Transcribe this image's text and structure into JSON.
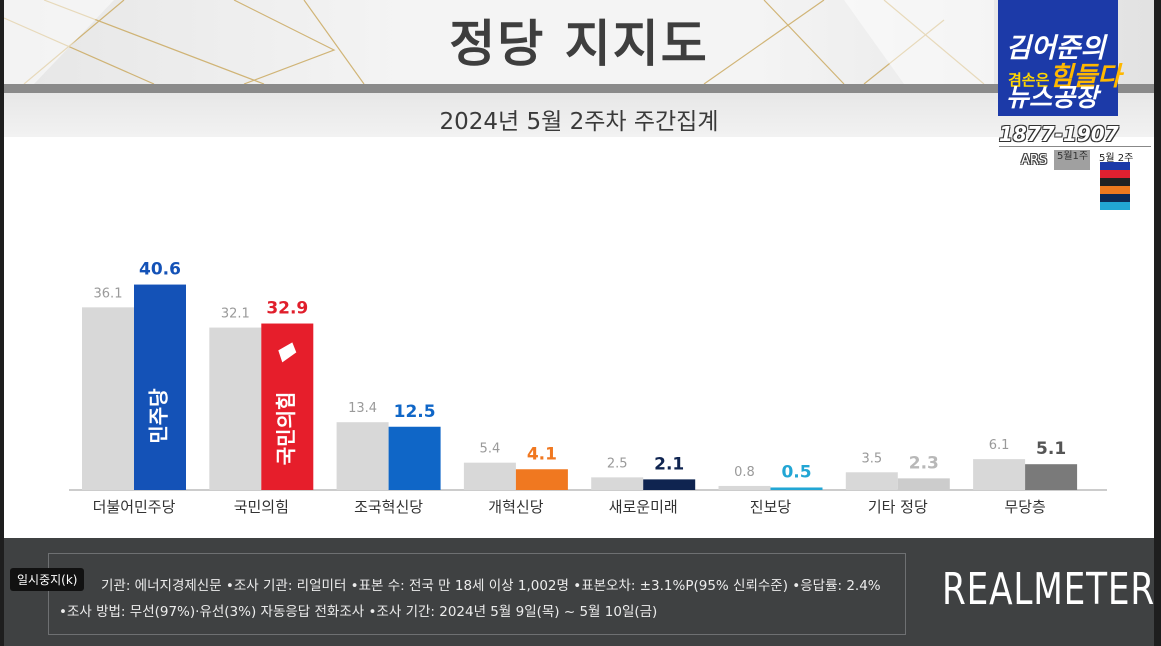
{
  "header": {
    "title": "정당 지지도",
    "subtitle": "2024년 5월 2주차 주간집계"
  },
  "logo": {
    "line1": "김어준의",
    "line2_small": "겸손은",
    "line2_big": "힘들다",
    "line3": "뉴스공장",
    "phone": "1877-1907",
    "ars_label": "ARS",
    "ars_week": "5월1주",
    "mini_week": "5월 2주"
  },
  "chart_data": {
    "type": "bar",
    "categories": [
      "더불어민주당",
      "국민의힘",
      "조국혁신당",
      "개혁신당",
      "새로운미래",
      "진보당",
      "기타 정당",
      "무당층"
    ],
    "series": [
      {
        "values": [
          36.1,
          32.1,
          13.4,
          5.4,
          2.5,
          0.8,
          3.5,
          6.1
        ]
      },
      {
        "values": [
          40.6,
          32.9,
          12.5,
          4.1,
          2.1,
          0.5,
          2.3,
          5.1
        ]
      }
    ],
    "series_colors": {
      "previous": "#d8d8d8",
      "current": [
        "#1452b7",
        "#e61e2b",
        "#0f66c7",
        "#f07820",
        "#0f2450",
        "#22a6d4",
        "#cccccc",
        "#7a7a7a"
      ],
      "current_label": [
        "#1452b7",
        "#e01e2b",
        "#0f66c7",
        "#f07820",
        "#0f2450",
        "#22a6d4",
        "#b8b8b8",
        "#555555"
      ]
    },
    "bar_marks": [
      "민주당",
      "국민의힘"
    ],
    "ylim": [
      0,
      45
    ],
    "grid": false,
    "xlabel": "",
    "ylabel": ""
  },
  "footer": {
    "line1": "기관: 에너지경제신문   •조사 기관: 리얼미터 •표본 수: 전국 만 18세 이상 1,002명 •표본오차: ±3.1%P(95% 신뢰수준) •응답률: 2.4%",
    "line2": "•조사 방법: 무선(97%)·유선(3%) 자동응답 전화조사 •조사 기간: 2024년 5월 9일(목) ~ 5월 10일(금)",
    "brand": "REALMETER",
    "pause_label": "일시중지(k)"
  }
}
